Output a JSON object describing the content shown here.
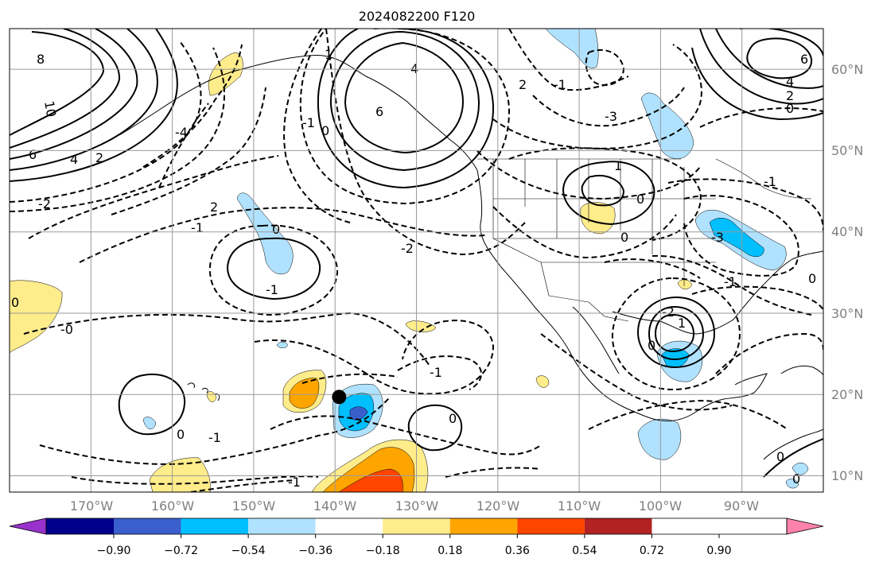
{
  "title": "2024082200 F120",
  "map": {
    "extent_lon": [
      -180,
      -80
    ],
    "extent_lat": [
      8,
      65
    ],
    "lon_ticks": [
      "170°W",
      "160°W",
      "150°W",
      "140°W",
      "130°W",
      "120°W",
      "110°W",
      "100°W",
      "90°W"
    ],
    "lat_ticks": [
      "10°N",
      "20°N",
      "30°N",
      "40°N",
      "50°N",
      "60°N"
    ],
    "storm_marker": {
      "lon": -139.5,
      "lat": 19.7,
      "color": "#000000"
    }
  },
  "contour_labels": [
    {
      "text": "8"
    },
    {
      "text": "10"
    },
    {
      "text": "6"
    },
    {
      "text": "4"
    },
    {
      "text": "2"
    },
    {
      "text": "-2"
    },
    {
      "text": "-4"
    },
    {
      "text": "-1"
    },
    {
      "text": "2"
    },
    {
      "text": "-1"
    },
    {
      "text": "0"
    },
    {
      "text": "1"
    },
    {
      "text": "4"
    },
    {
      "text": "6"
    },
    {
      "text": "0"
    },
    {
      "text": "-1"
    },
    {
      "text": "-2"
    },
    {
      "text": "-3"
    },
    {
      "text": "-1"
    },
    {
      "text": "2"
    },
    {
      "text": "1"
    },
    {
      "text": "0"
    },
    {
      "text": "0"
    },
    {
      "text": "-3"
    },
    {
      "text": "-1"
    },
    {
      "text": "0"
    },
    {
      "text": "-1"
    },
    {
      "text": "-2"
    },
    {
      "text": "1"
    },
    {
      "text": "0"
    },
    {
      "text": "-0"
    },
    {
      "text": "0"
    },
    {
      "text": "-1"
    },
    {
      "text": "0"
    },
    {
      "text": "0"
    },
    {
      "text": "-1"
    },
    {
      "text": "-1"
    },
    {
      "text": "6"
    },
    {
      "text": "4"
    },
    {
      "text": "2"
    },
    {
      "text": "0"
    },
    {
      "text": "0"
    },
    {
      "text": "0"
    }
  ],
  "colorbar": {
    "colors": [
      "#9932cc",
      "#00008b",
      "#3a5fcd",
      "#00bfff",
      "#b0e2ff",
      "#ffffff",
      "#ffec8b",
      "#ffa500",
      "#ff4500",
      "#b22222",
      "#ff82ab"
    ],
    "labels": [
      "−0.90",
      "−0.72",
      "−0.54",
      "−0.36",
      "−0.18",
      "0.18",
      "0.36",
      "0.54",
      "0.72",
      "0.90"
    ]
  }
}
